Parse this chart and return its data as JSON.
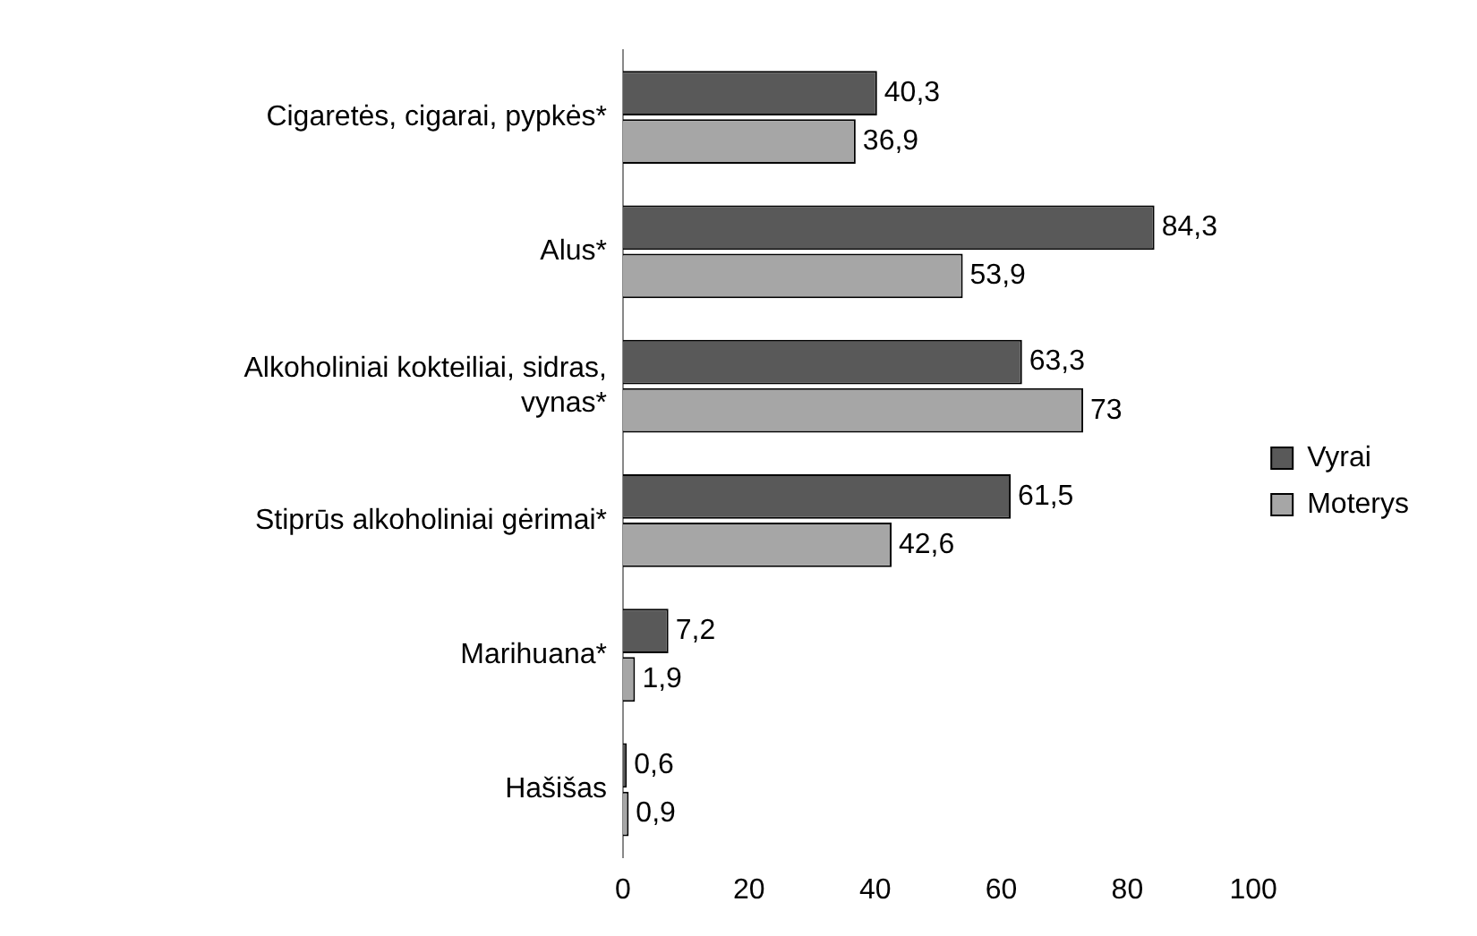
{
  "chart_data": {
    "type": "bar",
    "orientation": "horizontal",
    "categories": [
      "Cigaretės, cigarai, pypkės*",
      "Alus*",
      "Alkoholiniai kokteiliai, sidras, vynas*",
      "Stiprūs alkoholiniai gėrimai*",
      "Marihuana*",
      "Hašišas"
    ],
    "series": [
      {
        "name": "Vyrai",
        "color": "#595959",
        "values": [
          40.3,
          84.3,
          63.3,
          61.5,
          7.2,
          0.6
        ],
        "value_labels": [
          "40,3",
          "84,3",
          "63,3",
          "61,5",
          "7,2",
          "0,6"
        ]
      },
      {
        "name": "Moterys",
        "color": "#a6a6a6",
        "values": [
          36.9,
          53.9,
          73,
          42.6,
          1.9,
          0.9
        ],
        "value_labels": [
          "36,9",
          "53,9",
          "73",
          "42,6",
          "1,9",
          "0,9"
        ]
      }
    ],
    "xlim": [
      0,
      100
    ],
    "xticks": [
      0,
      20,
      40,
      60,
      80,
      100
    ],
    "grid": false,
    "legend": "right"
  }
}
